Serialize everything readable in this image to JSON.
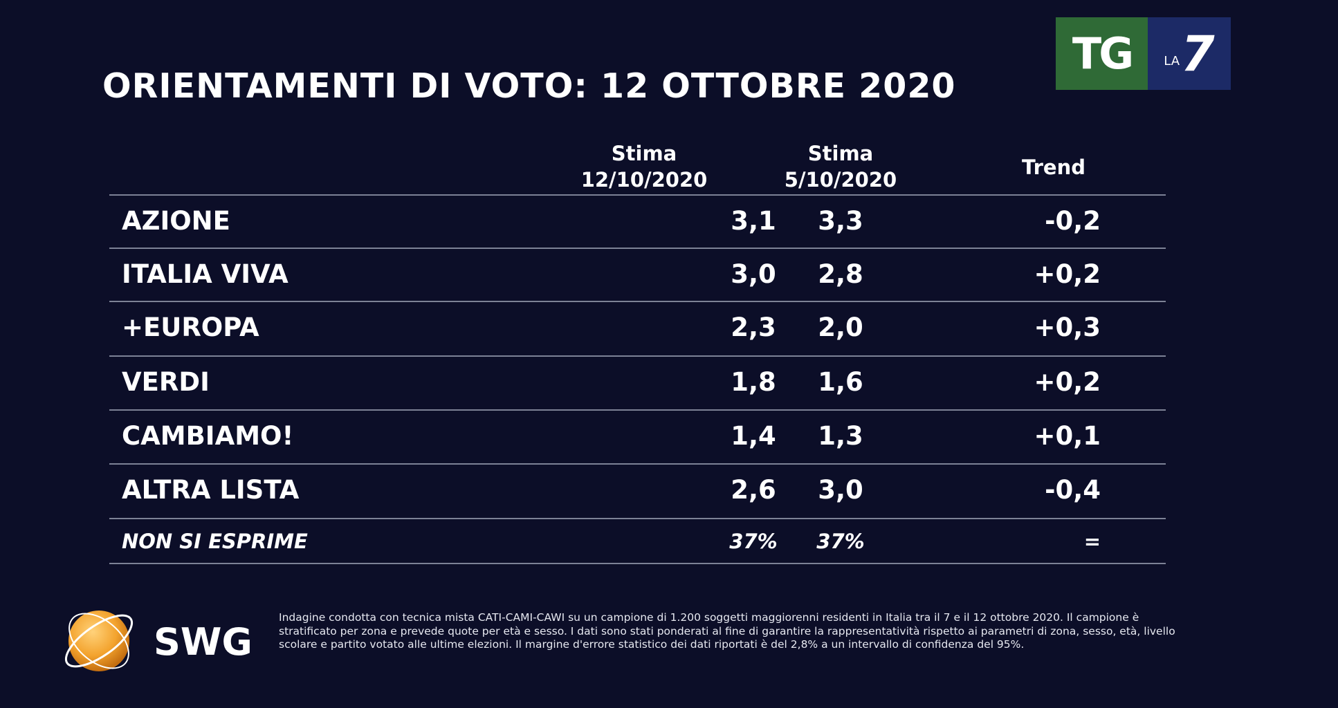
{
  "title": "ORIENTAMENTI DI VOTO: 12 OTTOBRE 2020",
  "logo": {
    "tg": "TG",
    "la": "LA",
    "seven": "7",
    "green": "#2f6a36",
    "blue": "#1c2a66"
  },
  "table": {
    "headers": [
      {
        "line1": "Stima",
        "line2": "12/10/2020"
      },
      {
        "line1": "Stima",
        "line2": "5/10/2020"
      },
      {
        "line1": "Trend"
      }
    ],
    "rows": [
      {
        "party": "AZIONE",
        "v1": "3,1",
        "v2": "3,3",
        "trend": "-0,2"
      },
      {
        "party": "ITALIA VIVA",
        "v1": "3,0",
        "v2": "2,8",
        "trend": "+0,2"
      },
      {
        "party": "+EUROPA",
        "v1": "2,3",
        "v2": "2,0",
        "trend": "+0,3"
      },
      {
        "party": "VERDI",
        "v1": "1,8",
        "v2": "1,6",
        "trend": "+0,2"
      },
      {
        "party": "CAMBIAMO!",
        "v1": "1,4",
        "v2": "1,3",
        "trend": "+0,1"
      },
      {
        "party": "ALTRA LISTA",
        "v1": "2,6",
        "v2": "3,0",
        "trend": "-0,4"
      }
    ],
    "non_si_esprime": {
      "party": "NON SI ESPRIME",
      "v1": "37%",
      "v2": "37%",
      "trend": "="
    }
  },
  "swg": {
    "name": "SWG"
  },
  "note": "Indagine condotta con tecnica mista CATI-CAMI-CAWI su un campione di 1.200 soggetti maggiorenni residenti in Italia tra il 7 e il 12 ottobre 2020. Il campione è stratificato per zona e prevede quote per età e sesso. I dati sono stati ponderati al fine di garantire la rappresentatività rispetto ai parametri di zona, sesso, età, livello scolare e partito votato alle ultime elezioni. Il margine d'errore statistico dei dati riportati è del 2,8% a un intervallo di confidenza del 95%."
}
